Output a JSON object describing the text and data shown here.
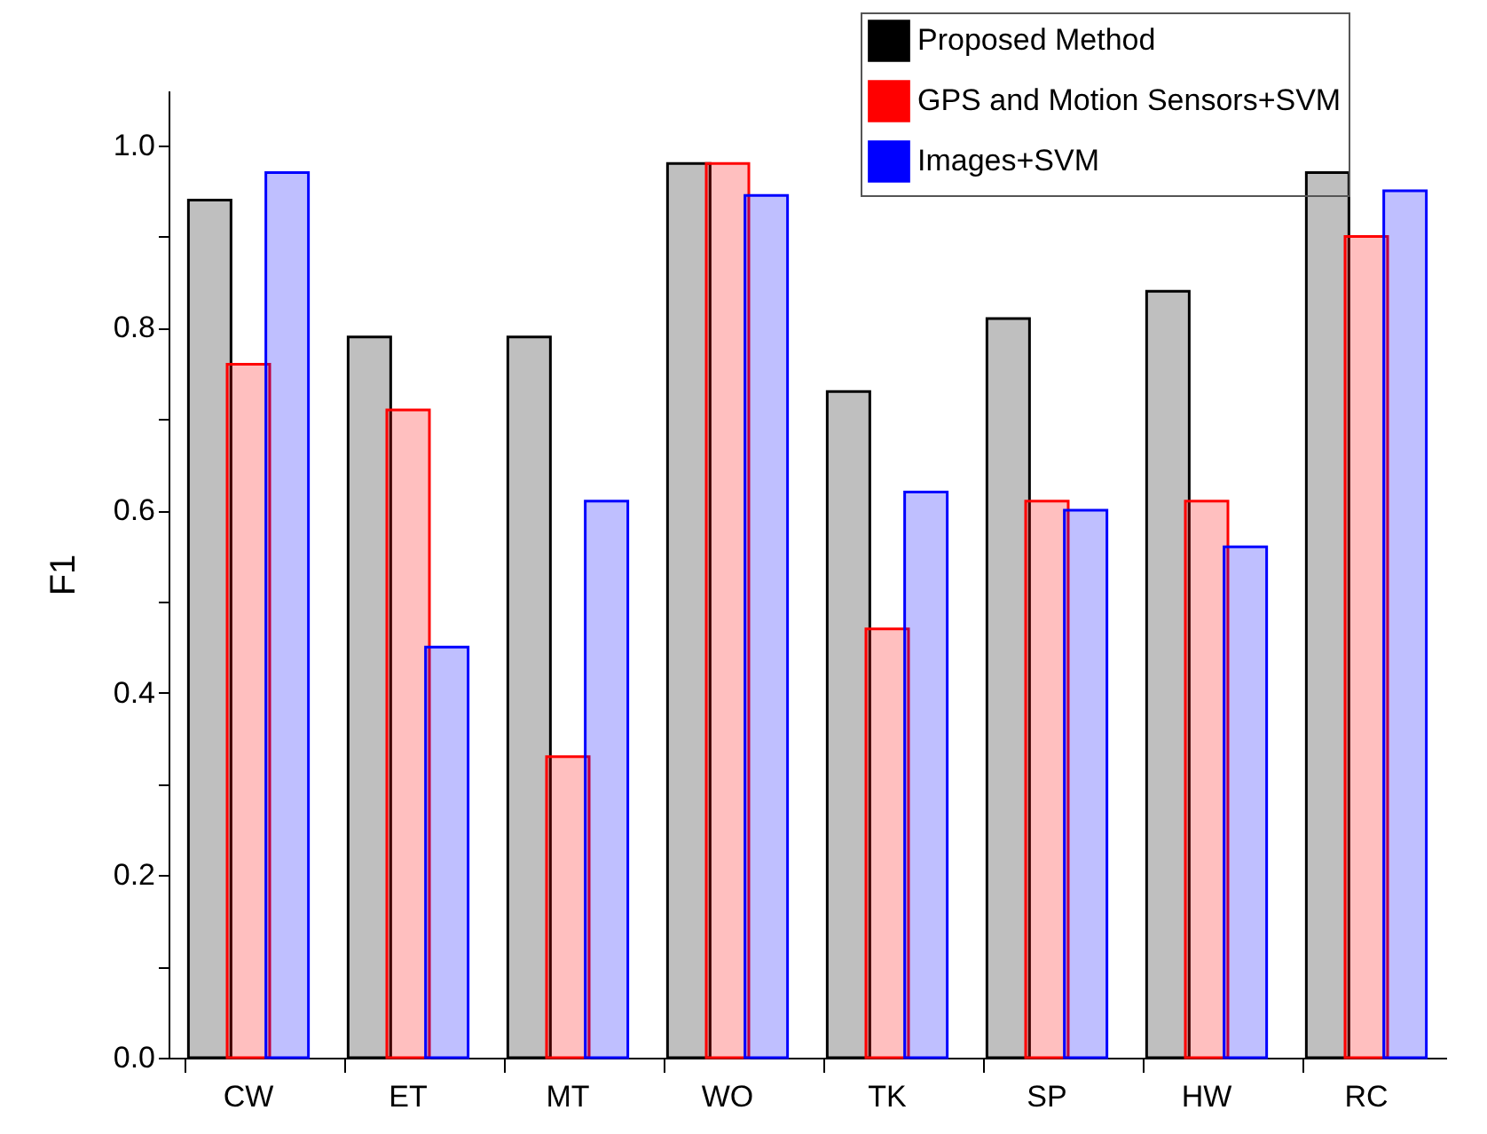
{
  "chart_data": {
    "type": "bar",
    "ylabel": "F1",
    "categories": [
      "CW",
      "ET",
      "MT",
      "WO",
      "TK",
      "SP",
      "HW",
      "RC"
    ],
    "series": [
      {
        "name": "Proposed Method",
        "color": "#000000",
        "values": [
          0.94,
          0.79,
          0.79,
          0.98,
          0.73,
          0.81,
          0.84,
          0.97
        ]
      },
      {
        "name": "GPS and Motion Sensors+SVM",
        "color": "#ff0000",
        "values": [
          0.76,
          0.71,
          0.33,
          0.98,
          0.47,
          0.61,
          0.61,
          0.9
        ]
      },
      {
        "name": "Images+SVM",
        "color": "#0000ff",
        "values": [
          0.97,
          0.45,
          0.61,
          0.945,
          0.62,
          0.6,
          0.56,
          0.95
        ]
      }
    ],
    "ylim": [
      0,
      1.06
    ],
    "yticks": [
      {
        "value": 0,
        "label": "0.0"
      },
      {
        "value": 0.1,
        "label": null
      },
      0.2,
      {
        "value": 0.3,
        "label": null
      },
      0.4,
      {
        "value": 0.5,
        "label": null
      },
      0.6,
      {
        "value": 0.7,
        "label": null
      },
      0.8,
      {
        "value": 0.9,
        "label": null
      },
      {
        "value": 1,
        "label": "1.0"
      }
    ],
    "grid": false,
    "legend": "top right"
  }
}
